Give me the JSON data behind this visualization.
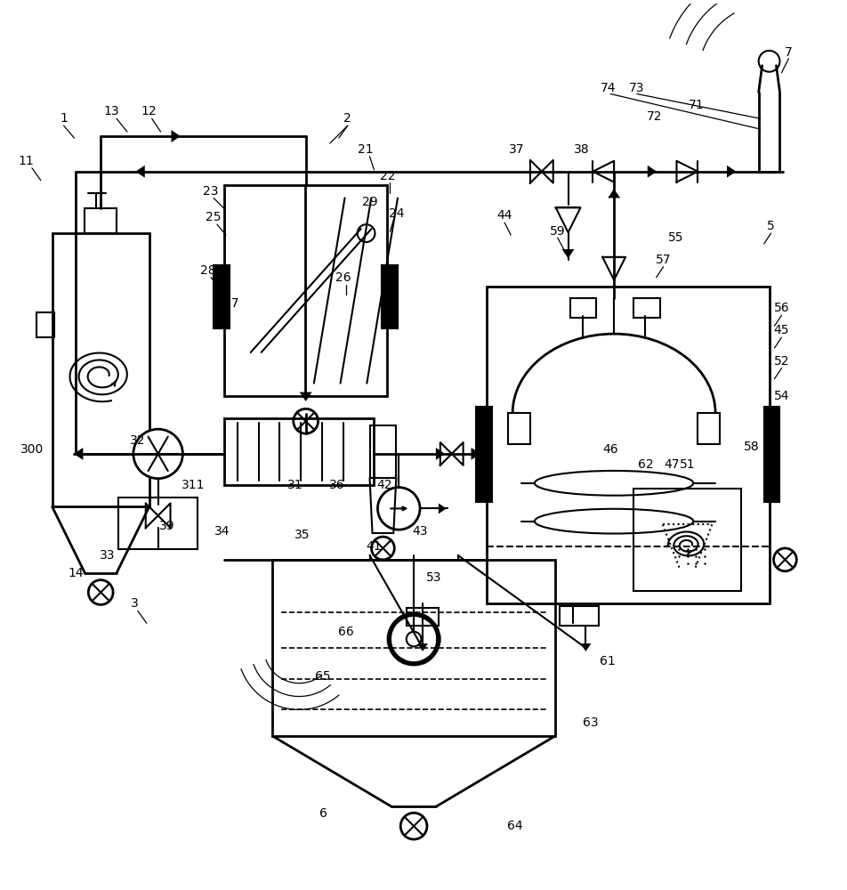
{
  "bg": "#ffffff",
  "lc": "#000000",
  "lw": 1.5,
  "lw2": 2.0,
  "fs": 10,
  "figsize": [
    9.52,
    10.0
  ]
}
